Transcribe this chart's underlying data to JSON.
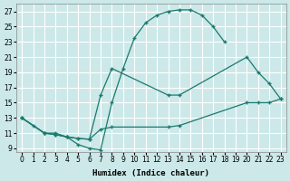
{
  "xlabel": "Humidex (Indice chaleur)",
  "bg_color": "#cce8e8",
  "grid_color": "#ffffff",
  "line_color": "#1a7a6e",
  "xlim": [
    -0.5,
    23.5
  ],
  "ylim": [
    8.5,
    28
  ],
  "xticks": [
    0,
    1,
    2,
    3,
    4,
    5,
    6,
    7,
    8,
    9,
    10,
    11,
    12,
    13,
    14,
    15,
    16,
    17,
    18,
    19,
    20,
    21,
    22,
    23
  ],
  "yticks": [
    9,
    11,
    13,
    15,
    17,
    19,
    21,
    23,
    25,
    27
  ],
  "line1_x": [
    0,
    1,
    2,
    3,
    4,
    5,
    6,
    7,
    8,
    9,
    10,
    11,
    12,
    13,
    14,
    15,
    16,
    17,
    18
  ],
  "line1_y": [
    13,
    12,
    11,
    11,
    10.5,
    9.5,
    9,
    8.8,
    15,
    19.5,
    23.5,
    25.5,
    26.5,
    27,
    27.2,
    27.2,
    26.5,
    25,
    23
  ],
  "line2_x": [
    0,
    2,
    3,
    4,
    5,
    6,
    7,
    8,
    13,
    14,
    20,
    21,
    22,
    23
  ],
  "line2_y": [
    13,
    11,
    10.8,
    10.5,
    10.3,
    10.2,
    16,
    19.5,
    16,
    16,
    21,
    19,
    17.5,
    15.5
  ],
  "line3_x": [
    0,
    2,
    3,
    4,
    5,
    6,
    7,
    8,
    13,
    14,
    20,
    21,
    22,
    23
  ],
  "line3_y": [
    13,
    11,
    10.8,
    10.5,
    10.3,
    10.2,
    11.5,
    11.8,
    11.8,
    12,
    15,
    15,
    15,
    15.5
  ]
}
